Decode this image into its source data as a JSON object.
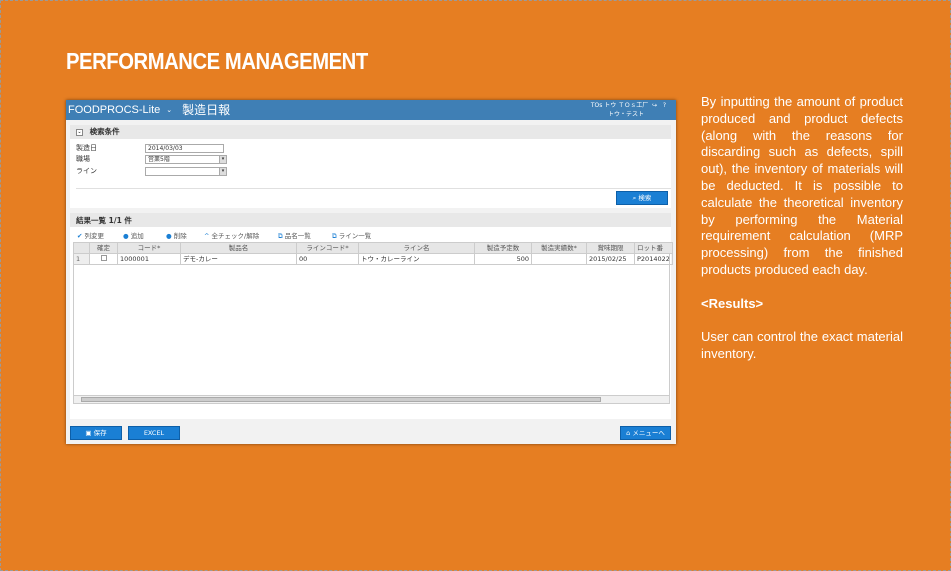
{
  "heading": "PERFORMANCE MANAGEMENT",
  "description": {
    "p1": "By inputting the amount of product produced and product defects (along with the reasons for discarding such as defects, spill out), the inventory of materials will be deducted. It is possible to calculate the theoretical inventory by performing the Material requirement calculation (MRP processing) from the finished products produced each day.",
    "results_label": "<Results>",
    "p2": "User can control the exact material inventory."
  },
  "app": {
    "logo": "FOODPROCS-Lite",
    "title": "製造日報",
    "user_line1": "TOs トウ ＴＯｓ工厂",
    "user_line2": "トウ・テスト",
    "help": "?",
    "search_section": "検索条件",
    "fields": [
      {
        "label": "製造日",
        "value": "2014/03/03"
      },
      {
        "label": "職場",
        "value": "営業5階"
      },
      {
        "label": "ライン",
        "value": ""
      }
    ],
    "search_button": "検索",
    "results_title": "結果一覧 1/1 件",
    "toolbar": [
      "列変更",
      "追加",
      "削除",
      "全チェック/解除",
      "品名一覧",
      "ライン一覧"
    ],
    "columns": [
      "",
      "確定",
      "コード*",
      "製品名",
      "ラインコード*",
      "ライン名",
      "製造予定数",
      "製造実績数*",
      "賞味期限",
      "ロット番"
    ],
    "rows": [
      [
        "1",
        "",
        "1000001",
        "デモ-カレー",
        "00",
        "トウ・カレーライン",
        "500",
        "",
        "2015/02/25",
        "P2014022"
      ]
    ],
    "save_button": "保存",
    "excel_button": "EXCEL",
    "menu_button": "メニューへ"
  }
}
